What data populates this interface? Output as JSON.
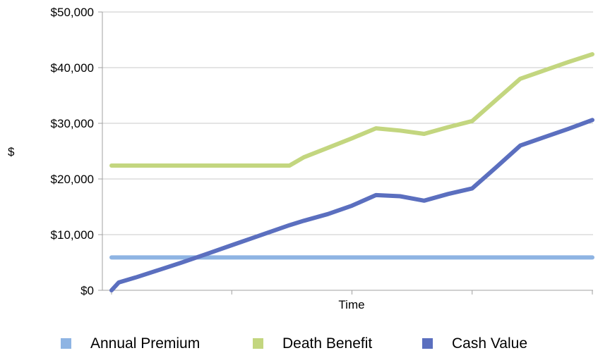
{
  "chart_data": {
    "type": "line",
    "title": "",
    "xlabel": "Time",
    "ylabel": "$",
    "ylim": [
      0,
      50000
    ],
    "y_ticks": [
      {
        "value": 0,
        "label": "$0"
      },
      {
        "value": 10000,
        "label": "$10,000"
      },
      {
        "value": 20000,
        "label": "$20,000"
      },
      {
        "value": 30000,
        "label": "$30,000"
      },
      {
        "value": 40000,
        "label": "$40,000"
      },
      {
        "value": 50000,
        "label": "$50,000"
      }
    ],
    "x": [
      0,
      0.3,
      1,
      2,
      3,
      4,
      5,
      6,
      7,
      7.4,
      8,
      9,
      10,
      11,
      12,
      13,
      14,
      15,
      16,
      17,
      18,
      19,
      20
    ],
    "grid": "horizontal",
    "legend_position": "bottom",
    "series": [
      {
        "name": "Annual Premium",
        "color": "#8eb4e3",
        "values": [
          5900,
          5900,
          5900,
          5900,
          5900,
          5900,
          5900,
          5900,
          5900,
          5900,
          5900,
          5900,
          5900,
          5900,
          5900,
          5900,
          5900,
          5900,
          5900,
          5900,
          5900,
          5900,
          5900
        ]
      },
      {
        "name": "Death Benefit",
        "color": "#c3d67f",
        "values": [
          22400,
          22400,
          22400,
          22400,
          22400,
          22400,
          22400,
          22400,
          22400,
          22400,
          23900,
          25600,
          27300,
          29100,
          28700,
          28100,
          29300,
          30400,
          34200,
          38000,
          39500,
          41000,
          42400
        ]
      },
      {
        "name": "Cash Value",
        "color": "#5b6fbf",
        "values": [
          0,
          1400,
          2300,
          3700,
          5100,
          6600,
          8100,
          9600,
          11100,
          11700,
          12500,
          13700,
          15200,
          17100,
          16900,
          16100,
          17300,
          18300,
          22100,
          26000,
          27500,
          29000,
          30600
        ]
      }
    ]
  }
}
